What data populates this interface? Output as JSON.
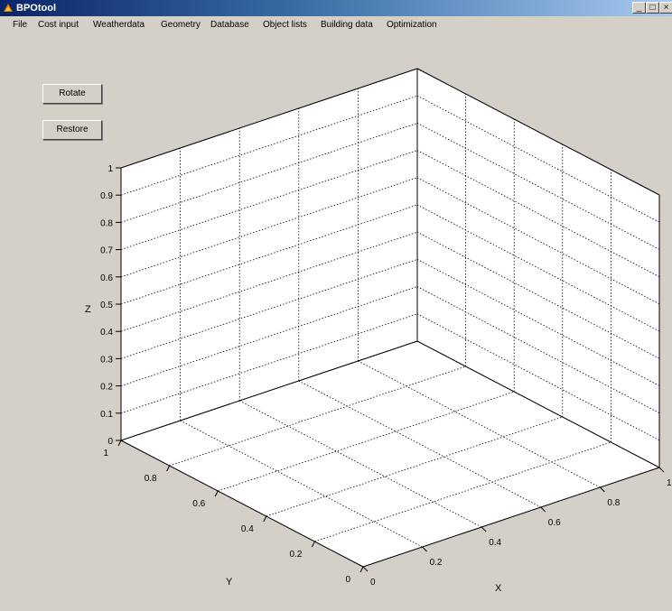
{
  "window": {
    "title": "BPOtool",
    "min": "_",
    "max": "□",
    "close": "×"
  },
  "menu": [
    "File",
    "Cost input",
    "Weatherdata",
    "Geometry",
    "Database",
    "Object lists",
    "Building data",
    "Optimization"
  ],
  "buttons": {
    "rotate": "Rotate",
    "restore": "Restore"
  },
  "chart_data": {
    "type": "scatter",
    "title": "",
    "series": [],
    "xlabel": "X",
    "ylabel": "Y",
    "zlabel": "Z",
    "xlim": [
      0,
      1
    ],
    "ylim": [
      0,
      1
    ],
    "zlim": [
      0,
      1
    ],
    "x_ticks": [
      "0",
      "0.2",
      "0.4",
      "0.6",
      "0.8",
      "1"
    ],
    "y_ticks": [
      "0",
      "0.2",
      "0.4",
      "0.6",
      "0.8",
      "1"
    ],
    "z_ticks": [
      "0",
      "0.1",
      "0.2",
      "0.3",
      "0.4",
      "0.5",
      "0.6",
      "0.7",
      "0.8",
      "0.9",
      "1"
    ],
    "grid": true,
    "box_face": "white",
    "view": "3d"
  }
}
